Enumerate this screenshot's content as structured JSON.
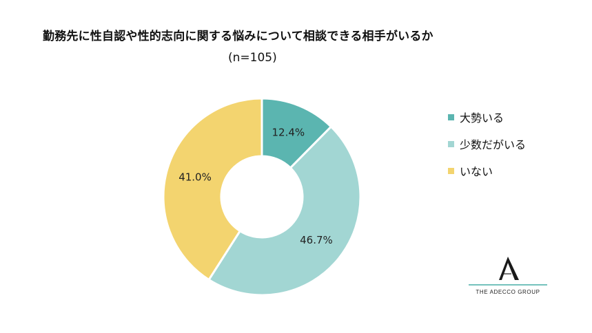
{
  "header": {
    "title": "勤務先に性自認や性的志向に関する悩みについて相談できる相手がいるか",
    "subtitle": "(n=105)"
  },
  "chart_data": {
    "type": "pie",
    "variant": "donut",
    "categories": [
      "大勢いる",
      "少数だがいる",
      "いない"
    ],
    "values": [
      12.4,
      46.7,
      41.0
    ],
    "value_labels": [
      "12.4%",
      "46.7%",
      "41.0%"
    ],
    "colors": [
      "#5bb5b0",
      "#a2d6d3",
      "#f3d46f"
    ],
    "legend_position": "right"
  },
  "logo": {
    "letter": "A",
    "text": "THE ADECCO GROUP",
    "line_color": "#74c2bc"
  }
}
